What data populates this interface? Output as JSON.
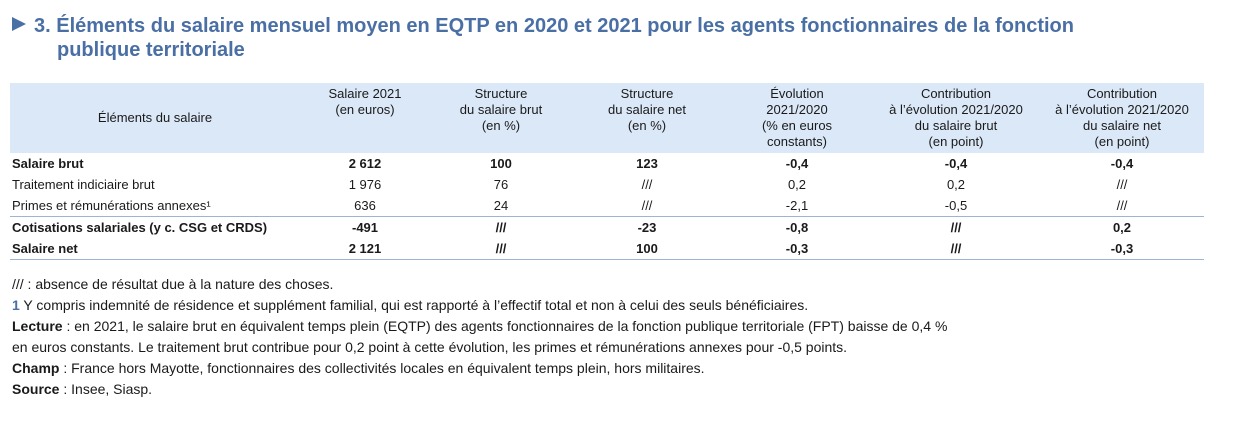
{
  "title": {
    "number": "3.",
    "line1": "Éléments du salaire mensuel moyen en EQTP en 2020 et 2021 pour les agents fonctionnaires de la fonction",
    "line2": "publique territoriale"
  },
  "table": {
    "headers": [
      "Éléments du salaire",
      "Salaire 2021\n(en euros)",
      "Structure\ndu salaire brut\n(en %)",
      "Structure\ndu salaire net\n(en %)",
      "Évolution\n2021/2020\n(% en euros\nconstants)",
      "Contribution\nà l’évolution 2021/2020\ndu salaire brut\n(en point)",
      "Contribution\nà l’évolution 2021/2020\ndu salaire net\n(en point)"
    ],
    "rows": [
      {
        "label": "Salaire brut",
        "values": [
          "2 612",
          "100",
          "123",
          "-0,4",
          "-0,4",
          "-0,4"
        ]
      },
      {
        "label": "Traitement indiciaire brut",
        "values": [
          "1 976",
          "76",
          "///",
          "0,2",
          "0,2",
          "///"
        ]
      },
      {
        "label": "Primes et rémunérations annexes¹",
        "values": [
          "636",
          "24",
          "///",
          "-2,1",
          "-0,5",
          "///"
        ]
      },
      {
        "label": "Cotisations salariales (y c. CSG et CRDS)",
        "values": [
          "-491",
          "///",
          "-23",
          "-0,8",
          "///",
          "0,2"
        ]
      },
      {
        "label": "Salaire net",
        "values": [
          "2 121",
          "///",
          "100",
          "-0,3",
          "///",
          "-0,3"
        ]
      }
    ]
  },
  "notes": {
    "absence": "/// : absence de résultat due à la nature des choses.",
    "fn_number": "1",
    "fn_text": " Y compris indemnité de résidence et supplément familial, qui est rapporté à l’effectif total et non à celui des seuls bénéficiaires.",
    "lecture_label": "Lecture",
    "lecture_text": " : en 2021, le salaire brut en équivalent temps plein (EQTP) des agents fonctionnaires de la fonction publique territoriale (FPT) baisse de 0,4 %",
    "lecture_text2": "en euros constants. Le traitement brut contribue pour 0,2 point à cette évolution, les primes et rémunérations annexes pour -0,5 points.",
    "champ_label": "Champ",
    "champ_text": " : France hors Mayotte, fonctionnaires des collectivités locales en équivalent temps plein, hors militaires.",
    "source_label": "Source",
    "source_text": " : Insee, Siasp."
  }
}
